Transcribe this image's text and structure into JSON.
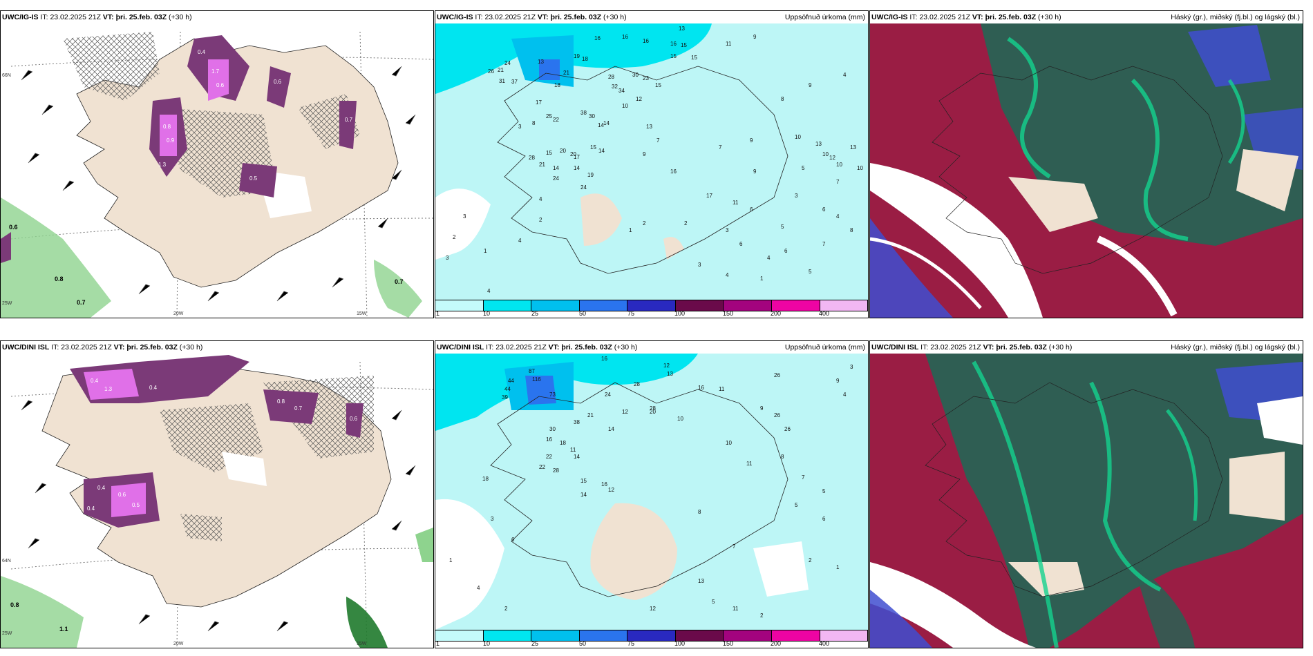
{
  "panels": [
    {
      "model": "UWC/IG-IS",
      "it_label": "IT:",
      "it": "23.02.2025 21Z",
      "vt_label": "VT:",
      "vt": "þri. 25.feb. 03Z",
      "lead": "(+30 h)",
      "right": ""
    },
    {
      "model": "UWC/IG-IS",
      "it_label": "IT:",
      "it": "23.02.2025 21Z",
      "vt_label": "VT:",
      "vt": "þri. 25.feb. 03Z",
      "lead": "(+30 h)",
      "right": "Uppsöfnuð úrkoma (mm)"
    },
    {
      "model": "UWC/IG-IS",
      "it_label": "IT:",
      "it": "23.02.2025 21Z",
      "vt_label": "VT:",
      "vt": "þri. 25.feb. 03Z",
      "lead": "(+30 h)",
      "right": "Háský (gr.), miðský (fj.bl.) og lágský (bl.)"
    },
    {
      "model": "UWC/DINI ISL",
      "it_label": "IT:",
      "it": "23.02.2025 21Z",
      "vt_label": "VT:",
      "vt": "þri. 25.feb. 03Z",
      "lead": "(+30 h)",
      "right": ""
    },
    {
      "model": "UWC/DINI ISL",
      "it_label": "IT:",
      "it": "23.02.2025 21Z",
      "vt_label": "VT:",
      "vt": "þri. 25.feb. 03Z",
      "lead": "(+30 h)",
      "right": "Uppsöfnuð úrkoma (mm)"
    },
    {
      "model": "UWC/DINI ISL",
      "it_label": "IT:",
      "it": "23.02.2025 21Z",
      "vt_label": "VT:",
      "vt": "þri. 25.feb. 03Z",
      "lead": "(+30 h)",
      "right": "Háský (gr.), miðský (fj.bl.) og lágský (bl.)"
    }
  ],
  "grid_labels": {
    "lat66": "66N",
    "lat64": "64N",
    "lon20": "20W",
    "lon15": "15W",
    "lon25": "25W"
  },
  "precip_legend": {
    "labels": [
      "1",
      "10",
      "25",
      "50",
      "75",
      "100",
      "150",
      "200",
      "400"
    ],
    "colors": [
      "#c4fbfb",
      "#00e6f0",
      "#00c0ee",
      "#2a74ee",
      "#2929c0",
      "#6a0a4a",
      "#a3037e",
      "#ee04a3",
      "#f2b7f3"
    ]
  },
  "colors": {
    "land": "#f0e2d2",
    "precip_base": "#bdf6f6",
    "precip_strong": "#00e5f0",
    "snow_purple": "#7b3a78",
    "snow_pink": "#e070e8",
    "sea_green": "#8ed38e",
    "cloud_high": "#2f5e53",
    "cloud_mid": "#9a1d44",
    "cloud_low": "#3f4ed0"
  },
  "panel1_values": {
    "sea": [
      "0.6",
      "0.8",
      "0.7",
      "0.7"
    ],
    "inland": [
      "0.4",
      "1.7",
      "0.8",
      "0.9",
      "0.5",
      "0.6",
      "0.7",
      "0.6",
      "1.3"
    ]
  },
  "panel4_values": {
    "sea": [
      "0.8",
      "1.1"
    ],
    "inland": [
      "0.4",
      "1.3",
      "0.6",
      "0.5",
      "0.8",
      "0.7",
      "0.6",
      "0.4",
      "0.4",
      "0.4"
    ]
  },
  "panel2_values": [
    "16",
    "16",
    "16",
    "16",
    "15",
    "13",
    "15",
    "15",
    "11",
    "9",
    "24",
    "21",
    "31",
    "19",
    "18",
    "26",
    "37",
    "13",
    "18",
    "21",
    "28",
    "32",
    "34",
    "30",
    "23",
    "15",
    "12",
    "10",
    "17",
    "25",
    "38",
    "20",
    "14",
    "22",
    "15",
    "13",
    "9",
    "24",
    "19",
    "14",
    "30",
    "14",
    "16",
    "9",
    "20",
    "17",
    "15",
    "14",
    "7",
    "8",
    "9",
    "4",
    "10",
    "10",
    "28",
    "21",
    "14",
    "5",
    "7",
    "10",
    "13",
    "12",
    "10",
    "13",
    "24",
    "3",
    "8",
    "4",
    "9",
    "7",
    "2",
    "6",
    "3",
    "4",
    "2",
    "1",
    "3",
    "2",
    "1",
    "4",
    "3",
    "4",
    "6",
    "5",
    "7",
    "1",
    "2",
    "3",
    "8",
    "6",
    "4",
    "11",
    "17",
    "6",
    "5",
    "3",
    "4"
  ],
  "panel5_values": [
    "16",
    "12",
    "13",
    "26",
    "44",
    "44",
    "39",
    "87",
    "116",
    "73",
    "24",
    "26",
    "38",
    "16",
    "11",
    "28",
    "30",
    "18",
    "21",
    "12",
    "22",
    "14",
    "20",
    "14",
    "28",
    "15",
    "16",
    "10",
    "11",
    "18",
    "22",
    "16",
    "12",
    "14",
    "10",
    "11",
    "9",
    "8",
    "7",
    "5",
    "28",
    "26",
    "9",
    "3",
    "4",
    "6",
    "5",
    "2",
    "1",
    "8",
    "12",
    "13",
    "11",
    "2",
    "5",
    "7",
    "3",
    "6",
    "4",
    "1",
    "2"
  ]
}
